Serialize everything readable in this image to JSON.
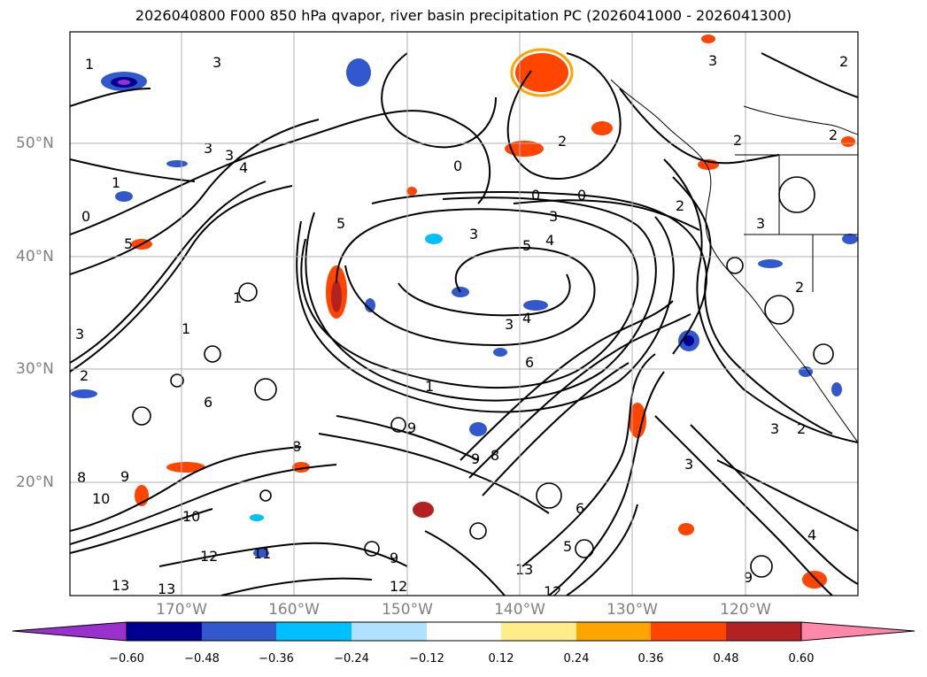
{
  "title": "2026040800 F000 850 hPa qvapor, river basin precipitation PC (2026041000 - 2026041300)",
  "lat_labels": [
    "50°N",
    "40°N",
    "30°N",
    "20°N"
  ],
  "lon_labels": [
    "170°W",
    "160°W",
    "150°W",
    "140°W",
    "130°W",
    "120°W"
  ],
  "colorbar": {
    "ticks": [
      "−0.60",
      "−0.48",
      "−0.36",
      "−0.24",
      "−0.12",
      "0.12",
      "0.24",
      "0.36",
      "0.48",
      "0.60"
    ],
    "colors": [
      "#9932cc",
      "#000090",
      "#3158cc",
      "#00bfff",
      "#b0e2ff",
      "#ffffff",
      "#ffec8b",
      "#ffa500",
      "#ff4500",
      "#b22222",
      "#ff88aa"
    ]
  },
  "contour_labels": [
    "1",
    "3",
    "2",
    "0",
    "5",
    "4",
    "6",
    "8",
    "9",
    "10",
    "11",
    "12",
    "13"
  ]
}
